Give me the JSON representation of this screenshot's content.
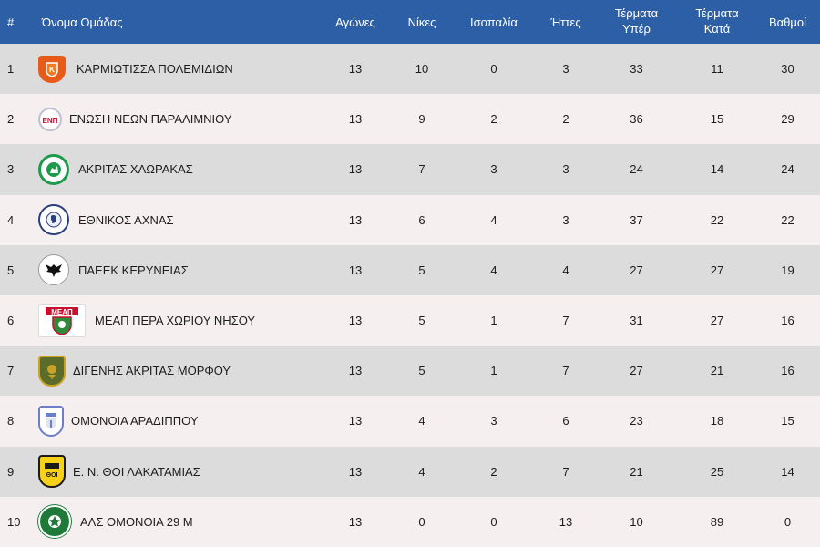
{
  "headers": {
    "pos": "#",
    "team": "Όνομα Ομάδας",
    "played": "Αγώνες",
    "wins": "Νίκες",
    "draws": "Ισοπαλία",
    "losses": "Ήττες",
    "gf_line1": "Τέρματα",
    "gf_line2": "Υπέρ",
    "ga_line1": "Τέρματα",
    "ga_line2": "Κατά",
    "points": "Βαθμοί"
  },
  "colors": {
    "header_bg": "#2d5fa6",
    "row_odd": "#dcdcdc",
    "row_even": "#f6efef"
  },
  "rows": [
    {
      "pos": "1",
      "team": "ΚΑΡΜΙΩΤΙΣΣΑ ΠΟΛΕΜΙΔΙΩΝ",
      "logo": "karmiotissa-crest-icon",
      "played": "13",
      "wins": "10",
      "draws": "0",
      "losses": "3",
      "gf": "33",
      "ga": "11",
      "points": "30"
    },
    {
      "pos": "2",
      "team": "ΕΝΩΣΗ ΝΕΩΝ ΠΑΡΑΛΙΜΝΙΟΥ",
      "logo": "enp-crest-icon",
      "played": "13",
      "wins": "9",
      "draws": "2",
      "losses": "2",
      "gf": "36",
      "ga": "15",
      "points": "29"
    },
    {
      "pos": "3",
      "team": "ΑΚΡΙΤΑΣ ΧΛΩΡΑΚΑΣ",
      "logo": "akritas-crest-icon",
      "played": "13",
      "wins": "7",
      "draws": "3",
      "losses": "3",
      "gf": "24",
      "ga": "14",
      "points": "24"
    },
    {
      "pos": "4",
      "team": "ΕΘΝΙΚΟΣ ΑΧΝΑΣ",
      "logo": "ethnikos-crest-icon",
      "played": "13",
      "wins": "6",
      "draws": "4",
      "losses": "3",
      "gf": "37",
      "ga": "22",
      "points": "22"
    },
    {
      "pos": "5",
      "team": "ΠΑΕΕΚ ΚΕΡΥΝΕΙΑΣ",
      "logo": "paeek-crest-icon",
      "played": "13",
      "wins": "5",
      "draws": "4",
      "losses": "4",
      "gf": "27",
      "ga": "27",
      "points": "19"
    },
    {
      "pos": "6",
      "team": "ΜΕΑΠ ΠΕΡΑ ΧΩΡΙΟΥ ΝΗΣΟΥ",
      "logo": "meap-crest-icon",
      "played": "13",
      "wins": "5",
      "draws": "1",
      "losses": "7",
      "gf": "31",
      "ga": "27",
      "points": "16"
    },
    {
      "pos": "7",
      "team": "ΔΙΓΕΝΗΣ ΑΚΡΙΤΑΣ ΜΟΡΦΟΥ",
      "logo": "digenis-crest-icon",
      "played": "13",
      "wins": "5",
      "draws": "1",
      "losses": "7",
      "gf": "27",
      "ga": "21",
      "points": "16"
    },
    {
      "pos": "8",
      "team": "ΟΜΟΝΟΙΑ ΑΡΑΔΙΠΠΟΥ",
      "logo": "omonia-aradippou-crest-icon",
      "played": "13",
      "wins": "4",
      "draws": "3",
      "losses": "6",
      "gf": "23",
      "ga": "18",
      "points": "15"
    },
    {
      "pos": "9",
      "team": "Ε. Ν. ΘΟΙ ΛΑΚΑΤΑΜΙΑΣ",
      "logo": "thoi-crest-icon",
      "played": "13",
      "wins": "4",
      "draws": "2",
      "losses": "7",
      "gf": "21",
      "ga": "25",
      "points": "14"
    },
    {
      "pos": "10",
      "team": "ΑΛΣ ΟΜΟΝΟΙΑ 29 Μ",
      "logo": "als-omonia-crest-icon",
      "played": "13",
      "wins": "0",
      "draws": "0",
      "losses": "13",
      "gf": "10",
      "ga": "89",
      "points": "0"
    }
  ]
}
